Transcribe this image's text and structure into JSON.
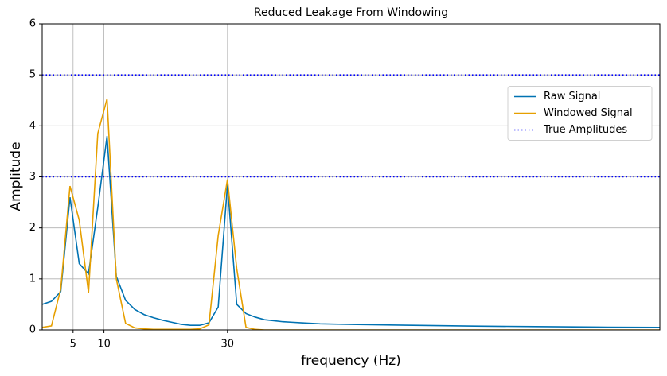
{
  "chart_data": {
    "type": "line",
    "title": "Reduced Leakage From Windowing",
    "x_label": "frequency (Hz)",
    "y_label": "Amplitude",
    "xlim": [
      0,
      100
    ],
    "xticks": [
      5,
      10,
      30
    ],
    "ylim": [
      0,
      6
    ],
    "yticks": [
      0,
      1,
      2,
      3,
      4,
      5,
      6
    ],
    "grid": true,
    "legend": "center right",
    "series": [
      {
        "name": "Raw Signal",
        "color": "#0072b2",
        "x": [
          0,
          1.5,
          3,
          4.5,
          6,
          7.5,
          9,
          10.5,
          12,
          13.5,
          15,
          16.5,
          18,
          19.5,
          21,
          22.5,
          24,
          25.5,
          27,
          28.5,
          30,
          31.5,
          33,
          34.5,
          36,
          37.5,
          39,
          40.5,
          42,
          45,
          51,
          60,
          70,
          80,
          90,
          100
        ],
        "values": [
          0.5,
          0.56,
          0.75,
          2.6,
          1.3,
          1.1,
          2.4,
          3.8,
          1.05,
          0.58,
          0.4,
          0.3,
          0.24,
          0.19,
          0.15,
          0.11,
          0.09,
          0.09,
          0.14,
          0.45,
          2.85,
          0.5,
          0.32,
          0.25,
          0.2,
          0.18,
          0.16,
          0.15,
          0.14,
          0.12,
          0.105,
          0.09,
          0.075,
          0.065,
          0.055,
          0.05
        ]
      },
      {
        "name": "Windowed Signal",
        "color": "#e69f00",
        "x": [
          0,
          1.5,
          3,
          4.5,
          6,
          7.5,
          9,
          10.5,
          12,
          13.5,
          15,
          16.5,
          18,
          19.5,
          21,
          22.5,
          24,
          25.5,
          27,
          28.5,
          30,
          31.5,
          33,
          34.5,
          36,
          100
        ],
        "values": [
          0.05,
          0.08,
          0.8,
          2.82,
          2.15,
          0.73,
          3.85,
          4.53,
          1.0,
          0.13,
          0.04,
          0.02,
          0.01,
          0.01,
          0.01,
          0.01,
          0.01,
          0.02,
          0.1,
          1.85,
          2.95,
          1.2,
          0.05,
          0.01,
          0,
          0
        ]
      },
      {
        "name": "True Amplitudes",
        "color": "#0000ff",
        "style": "dotted",
        "hlines": [
          3,
          5
        ]
      }
    ]
  }
}
